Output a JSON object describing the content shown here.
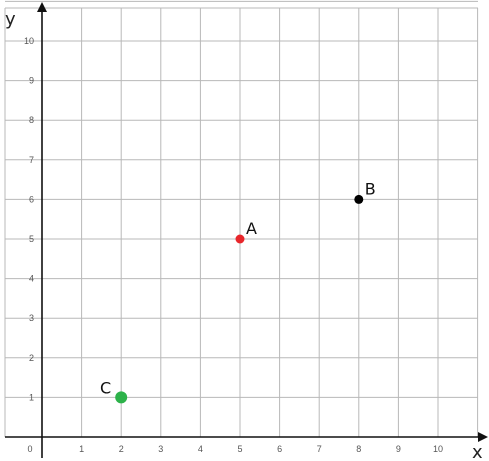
{
  "chart_data": {
    "type": "scatter",
    "title": "",
    "xlabel": "x",
    "ylabel": "y",
    "xlim": [
      0,
      11
    ],
    "ylim": [
      0,
      11
    ],
    "x_ticks": [
      0,
      1,
      2,
      3,
      4,
      5,
      6,
      7,
      8,
      9,
      10
    ],
    "y_ticks": [
      1,
      2,
      3,
      4,
      5,
      6,
      7,
      8,
      9,
      10
    ],
    "grid": true,
    "legend": "none",
    "points": [
      {
        "label": "A",
        "x": 5,
        "y": 5,
        "color": "#e8262b",
        "size": "small"
      },
      {
        "label": "B",
        "x": 8,
        "y": 6,
        "color": "#000000",
        "size": "small"
      },
      {
        "label": "C",
        "x": 2,
        "y": 1,
        "color": "#2db24a",
        "size": "large"
      }
    ]
  }
}
